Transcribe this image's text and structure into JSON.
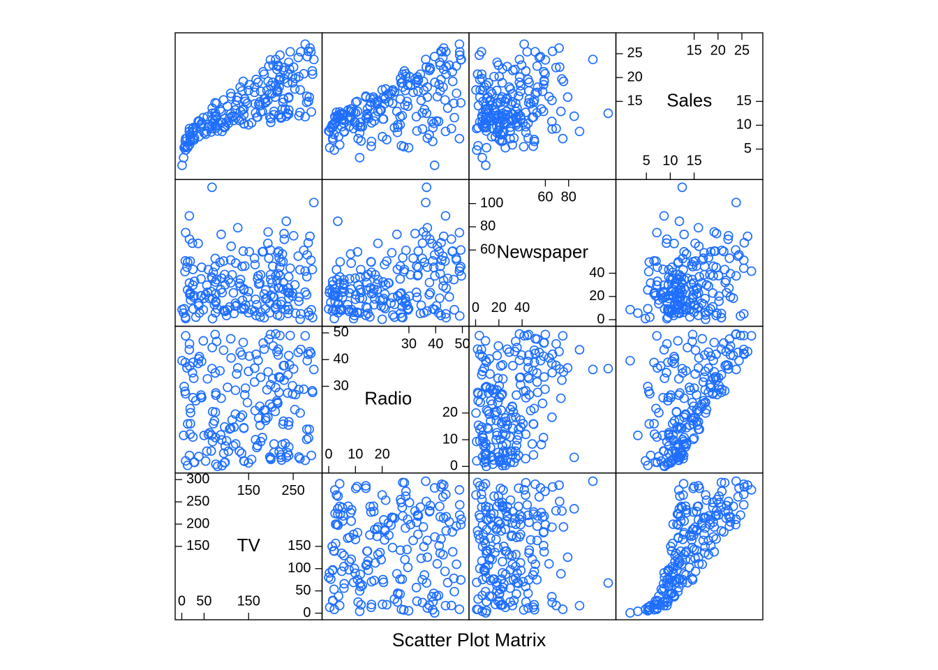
{
  "chart_data": {
    "type": "scatter",
    "title": "Scatter Plot Matrix",
    "variables": [
      "TV",
      "Radio",
      "Newspaper",
      "Sales"
    ],
    "point_color": "#1f6fff",
    "grid": false,
    "diagonal": [
      {
        "name": "TV",
        "range": [
          0,
          300
        ],
        "ticks_upper": [
          150,
          200,
          250,
          300
        ],
        "ticks_upper_right": [
          150,
          250
        ],
        "ticks_lower": [
          0,
          50,
          100,
          150
        ],
        "ticks_lower_left": [
          0,
          50,
          150
        ]
      },
      {
        "name": "Radio",
        "range": [
          0,
          50
        ],
        "ticks_upper": [
          30,
          40,
          50
        ],
        "ticks_upper_right": [
          30,
          40,
          50
        ],
        "ticks_lower": [
          0,
          10,
          20
        ],
        "ticks_lower_left": [
          0,
          10,
          20
        ]
      },
      {
        "name": "Newspaper",
        "range": [
          0,
          115
        ],
        "ticks_upper": [
          60,
          80,
          100
        ],
        "ticks_upper_right": [
          60,
          80
        ],
        "ticks_lower": [
          0,
          20,
          40
        ],
        "ticks_lower_left": [
          0,
          20,
          40
        ]
      },
      {
        "name": "Sales",
        "range": [
          0,
          28
        ],
        "ticks_upper": [
          15,
          20,
          25
        ],
        "ticks_upper_right": [
          15,
          20,
          25
        ],
        "ticks_lower": [
          5,
          10,
          15
        ],
        "ticks_lower_left": [
          5,
          10,
          15
        ]
      }
    ],
    "observations": {
      "TV": [
        230.1,
        44.5,
        17.2,
        151.5,
        180.8,
        8.7,
        57.5,
        120.2,
        8.6,
        199.8,
        66.1,
        214.7,
        23.8,
        97.5,
        204.1,
        195.4,
        67.8,
        281.4,
        69.2,
        147.3,
        218.4,
        237.4,
        13.2,
        228.3,
        62.3,
        262.9,
        142.9,
        240.1,
        248.8,
        70.6,
        292.9,
        112.9,
        97.2,
        265.6,
        95.7,
        290.7,
        266.9,
        74.7,
        43.1,
        228.0,
        202.5,
        177.0,
        293.6,
        206.9,
        25.1,
        175.1,
        89.7,
        239.9,
        227.2,
        66.9,
        199.8,
        100.4,
        216.4,
        182.6,
        262.7,
        198.9,
        7.3,
        136.2,
        210.8,
        210.7,
        53.5,
        261.3,
        239.3,
        102.7,
        131.1,
        69.0,
        31.5,
        139.3,
        237.4,
        216.8,
        199.1,
        109.8,
        26.8,
        129.4,
        213.4,
        16.9,
        27.5,
        120.5,
        5.4,
        116.0,
        76.4,
        239.8,
        75.3,
        68.4,
        213.5,
        193.2,
        76.3,
        110.7,
        88.3,
        109.8,
        134.3,
        28.6,
        217.7,
        250.9,
        107.4,
        163.3,
        197.6,
        184.9,
        289.7,
        135.2,
        222.4,
        296.4,
        280.2,
        187.9,
        238.2,
        137.9,
        25.0,
        90.4,
        13.1,
        255.4,
        225.8,
        241.7,
        175.7,
        209.6,
        78.2,
        75.1,
        139.2,
        76.4,
        125.7,
        19.4,
        141.3,
        18.8,
        224.0,
        123.1,
        229.5,
        87.2,
        7.8,
        80.2,
        220.3,
        59.6,
        0.7,
        265.2,
        8.4,
        219.8,
        36.9,
        48.3,
        25.6,
        273.7,
        43.0,
        184.9,
        73.4,
        193.7,
        220.5,
        104.6,
        96.2,
        140.3,
        240.1,
        243.2,
        38.0,
        44.7,
        280.7,
        121.0,
        197.6,
        171.3,
        187.8,
        4.1,
        93.9,
        149.8,
        11.7,
        131.7,
        172.5,
        85.7,
        188.4,
        163.5,
        117.2,
        234.5,
        17.9,
        206.8,
        215.4,
        284.3,
        50.0,
        164.5,
        19.6,
        168.4,
        222.4,
        276.9,
        248.4,
        170.2,
        276.7,
        165.6,
        156.6,
        218.5,
        56.2,
        287.6,
        253.8,
        205.0,
        139.5,
        191.1,
        286.0,
        18.7,
        39.5,
        75.5,
        17.2,
        166.8,
        149.7,
        38.2,
        94.2,
        177.0,
        283.6,
        232.1
      ],
      "Radio": [
        37.8,
        39.3,
        45.9,
        41.3,
        10.8,
        48.9,
        32.8,
        19.6,
        2.1,
        2.6,
        5.8,
        24.0,
        35.1,
        7.6,
        32.9,
        47.7,
        36.6,
        39.6,
        20.5,
        23.9,
        27.7,
        5.1,
        15.9,
        16.9,
        12.6,
        3.5,
        29.3,
        16.7,
        27.1,
        16.0,
        28.3,
        17.4,
        1.5,
        20.0,
        1.4,
        4.1,
        43.8,
        49.4,
        26.7,
        37.7,
        22.3,
        33.4,
        27.7,
        8.4,
        25.7,
        22.5,
        9.9,
        41.5,
        15.8,
        11.7,
        3.1,
        9.6,
        41.7,
        46.2,
        28.8,
        49.4,
        28.1,
        19.2,
        49.6,
        29.5,
        2.0,
        42.7,
        15.5,
        29.6,
        42.8,
        9.3,
        24.6,
        14.5,
        27.5,
        43.9,
        30.6,
        14.3,
        33.0,
        5.7,
        24.6,
        43.7,
        1.6,
        28.5,
        29.9,
        7.7,
        26.7,
        4.1,
        20.3,
        44.5,
        43.0,
        18.4,
        27.5,
        40.6,
        25.5,
        47.8,
        4.9,
        1.5,
        33.5,
        36.5,
        14.0,
        31.6,
        3.5,
        21.0,
        42.3,
        41.7,
        4.3,
        36.3,
        10.1,
        17.2,
        34.3,
        46.4,
        11.0,
        0.3,
        0.4,
        26.9,
        8.2,
        38.0,
        15.4,
        20.6,
        46.8,
        35.0,
        14.3,
        0.8,
        36.9,
        16.0,
        26.8,
        21.7,
        2.4,
        34.6,
        32.3,
        11.8,
        38.9,
        0.0,
        49.0,
        12.0,
        39.6,
        2.9,
        27.2,
        33.5,
        38.6,
        47.0,
        39.0,
        28.9,
        25.9,
        43.9,
        17.0,
        35.4,
        33.2,
        5.7,
        14.8,
        1.9,
        7.3,
        49.0,
        40.3,
        25.8,
        13.9,
        8.4,
        23.3,
        39.7,
        21.1,
        11.6,
        43.5,
        1.3,
        36.9,
        18.4,
        18.1,
        35.8,
        18.1,
        36.8,
        14.7,
        3.4,
        37.6,
        5.2,
        23.6,
        10.6,
        11.6,
        20.9,
        20.1,
        7.1,
        3.4,
        48.9,
        30.2,
        7.8,
        2.3,
        10.0,
        2.6,
        5.4,
        5.7,
        43.0,
        21.3,
        45.1,
        2.1,
        28.7,
        13.9,
        12.1,
        41.1,
        10.8,
        4.1,
        42.0,
        35.6,
        3.7,
        4.9,
        9.3,
        42.0,
        8.6
      ],
      "Newspaper": [
        69.2,
        45.1,
        69.3,
        58.5,
        58.4,
        75.0,
        23.5,
        11.6,
        1.0,
        21.2,
        24.2,
        4.0,
        65.9,
        7.2,
        46.0,
        52.9,
        114.0,
        55.8,
        18.3,
        19.1,
        53.4,
        23.5,
        49.6,
        26.2,
        18.3,
        19.5,
        12.6,
        22.9,
        22.9,
        40.8,
        43.2,
        38.6,
        30.0,
        0.3,
        7.4,
        8.5,
        5.0,
        45.7,
        35.1,
        32.0,
        31.6,
        38.7,
        1.8,
        26.4,
        43.3,
        31.5,
        35.7,
        18.5,
        49.9,
        36.8,
        34.6,
        3.6,
        39.6,
        58.7,
        15.9,
        60.0,
        41.4,
        16.6,
        37.7,
        9.3,
        21.4,
        54.7,
        27.3,
        8.4,
        28.9,
        0.9,
        2.2,
        10.2,
        11.0,
        27.2,
        38.7,
        31.7,
        19.3,
        31.3,
        13.1,
        89.4,
        20.7,
        14.2,
        9.4,
        23.1,
        22.3,
        36.9,
        32.5,
        35.6,
        33.8,
        65.7,
        16.0,
        63.2,
        73.4,
        51.4,
        9.3,
        33.0,
        59.0,
        72.3,
        10.9,
        52.9,
        5.9,
        22.0,
        51.2,
        45.9,
        49.8,
        100.9,
        21.4,
        17.9,
        5.3,
        59.0,
        29.7,
        23.2,
        25.6,
        5.5,
        56.5,
        23.2,
        2.4,
        10.7,
        34.5,
        52.7,
        25.6,
        14.8,
        79.2,
        22.3,
        46.2,
        50.4,
        15.6,
        12.4,
        74.2,
        25.9,
        50.6,
        9.2,
        3.2,
        43.1,
        8.7,
        43.0,
        2.1,
        45.1,
        65.6,
        8.5,
        9.3,
        59.7,
        20.5,
        1.7,
        12.9,
        75.6,
        37.9,
        34.4,
        38.9,
        9.0,
        8.7,
        44.3,
        11.9,
        20.6,
        37.0,
        48.7,
        14.2,
        37.7,
        9.5,
        5.7,
        50.5,
        24.3,
        45.2,
        34.6,
        30.7,
        49.3,
        25.6,
        7.4,
        5.4,
        84.8,
        21.6,
        19.4,
        57.6,
        6.4,
        18.4,
        47.4,
        17.0,
        12.8,
        13.1,
        41.8,
        20.3,
        35.2,
        23.7,
        17.6,
        8.3,
        27.4,
        29.7,
        71.8,
        30.0,
        19.6,
        26.6,
        18.2,
        3.7,
        23.4,
        5.8,
        6.0,
        31.6,
        3.6,
        6.0,
        13.8,
        8.1,
        6.4,
        66.2,
        8.7
      ],
      "Sales": [
        22.1,
        10.4,
        9.3,
        18.5,
        12.9,
        7.2,
        11.8,
        13.2,
        4.8,
        10.6,
        8.6,
        17.4,
        9.2,
        9.7,
        19.0,
        22.4,
        12.5,
        24.4,
        11.3,
        14.6,
        18.0,
        12.5,
        5.6,
        15.5,
        9.7,
        12.0,
        15.0,
        15.9,
        18.9,
        10.5,
        21.4,
        11.9,
        9.6,
        17.4,
        9.5,
        12.8,
        25.4,
        14.7,
        10.1,
        21.5,
        16.6,
        17.1,
        20.7,
        12.9,
        8.5,
        14.9,
        10.6,
        23.2,
        14.8,
        9.7,
        11.4,
        10.7,
        22.6,
        21.2,
        20.2,
        23.7,
        5.5,
        13.2,
        23.8,
        18.4,
        8.1,
        24.2,
        15.7,
        14.0,
        18.0,
        9.3,
        9.5,
        13.4,
        18.9,
        22.3,
        18.3,
        12.4,
        8.8,
        11.0,
        17.0,
        8.7,
        6.9,
        14.2,
        5.3,
        11.0,
        11.8,
        12.3,
        11.3,
        13.6,
        21.7,
        15.2,
        12.0,
        16.0,
        12.9,
        16.7,
        11.2,
        7.3,
        19.4,
        22.2,
        11.5,
        16.9,
        11.7,
        15.5,
        25.4,
        17.2,
        11.7,
        23.8,
        14.8,
        14.7,
        20.7,
        19.2,
        7.2,
        8.7,
        5.3,
        19.8,
        13.4,
        21.8,
        14.1,
        15.9,
        14.6,
        12.6,
        12.2,
        9.4,
        15.9,
        6.6,
        15.5,
        7.0,
        11.6,
        15.2,
        19.7,
        10.6,
        6.6,
        8.8,
        24.7,
        9.7,
        1.6,
        12.7,
        5.7,
        19.6,
        10.8,
        11.6,
        9.5,
        20.8,
        9.6,
        20.7,
        10.9,
        19.2,
        20.1,
        10.4,
        11.4,
        10.3,
        13.2,
        25.4,
        10.9,
        10.1,
        16.1,
        11.6,
        16.6,
        19.0,
        15.6,
        3.2,
        15.3,
        10.1,
        7.3,
        12.9,
        14.4,
        13.3,
        14.9,
        18.0,
        11.9,
        11.9,
        8.0,
        12.2,
        17.1,
        15.0,
        8.4,
        14.5,
        7.6,
        11.7,
        11.5,
        27.0,
        20.2,
        11.7,
        11.8,
        12.6,
        10.5,
        12.2,
        8.7,
        26.2,
        17.6,
        22.6,
        10.3,
        17.3,
        15.9,
        6.7,
        10.8,
        9.9,
        5.9,
        19.6,
        17.3,
        7.6,
        9.7,
        12.8,
        25.5,
        13.4
      ]
    }
  }
}
